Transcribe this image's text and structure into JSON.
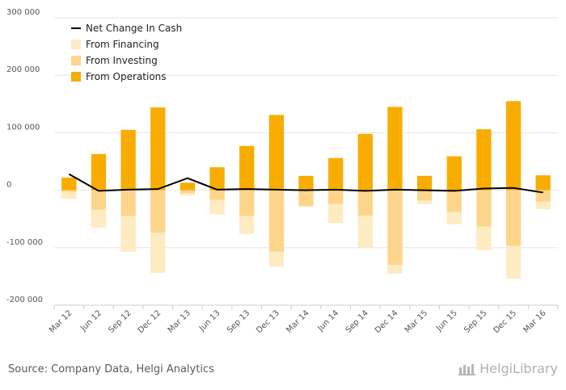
{
  "chart_data": {
    "type": "bar",
    "stacked": true,
    "categories": [
      "Mar 12",
      "Jun 12",
      "Sep 12",
      "Dec 12",
      "Mar 13",
      "Jun 13",
      "Sep 13",
      "Dec 13",
      "Mar 14",
      "Jun 14",
      "Sep 14",
      "Dec 14",
      "Mar 15",
      "Jun 15",
      "Sep 15",
      "Dec 15",
      "Mar 16"
    ],
    "series": [
      {
        "name": "From Operations",
        "kind": "bar",
        "color": "#F9AC00",
        "values": [
          22000,
          63000,
          105000,
          144000,
          13000,
          40000,
          77000,
          131000,
          25000,
          56000,
          98000,
          145000,
          25000,
          59000,
          106000,
          155000,
          26000
        ]
      },
      {
        "name": "From Investing",
        "kind": "bar",
        "color": "#FDD58A",
        "values": [
          -3000,
          -34000,
          -45000,
          -74000,
          -5000,
          -17000,
          -45000,
          -107000,
          -28000,
          -24000,
          -44000,
          -130000,
          -18000,
          -38000,
          -63000,
          -97000,
          -20000
        ]
      },
      {
        "name": "From Financing",
        "kind": "bar",
        "color": "#FEEBC2",
        "values": [
          -12000,
          -31000,
          -62000,
          -70000,
          -4000,
          -25000,
          -31000,
          -26000,
          0,
          -33000,
          -56000,
          -15000,
          -6000,
          -21000,
          -41000,
          -57000,
          -13000
        ]
      },
      {
        "name": "Net Change In Cash",
        "kind": "line",
        "color": "#000000",
        "values": [
          28000,
          -1000,
          1000,
          2000,
          21000,
          1000,
          2000,
          1000,
          0,
          1000,
          -1000,
          1000,
          0,
          -1000,
          3000,
          4000,
          -4000
        ]
      }
    ],
    "legend": [
      "Net Change In Cash",
      "From Financing",
      "From Investing",
      "From Operations"
    ],
    "legend_placement": "top-left",
    "ylim": [
      -200000,
      300000
    ],
    "yticks": [
      "300 000",
      "200 000",
      "100 000",
      "0",
      "-100 000",
      "-200 000"
    ],
    "ytick_values": [
      300000,
      200000,
      100000,
      0,
      -100000,
      -200000
    ],
    "grid": true
  },
  "footer": {
    "source": "Source: Company Data, Helgi Analytics",
    "brand": "HelgiLibrary"
  }
}
